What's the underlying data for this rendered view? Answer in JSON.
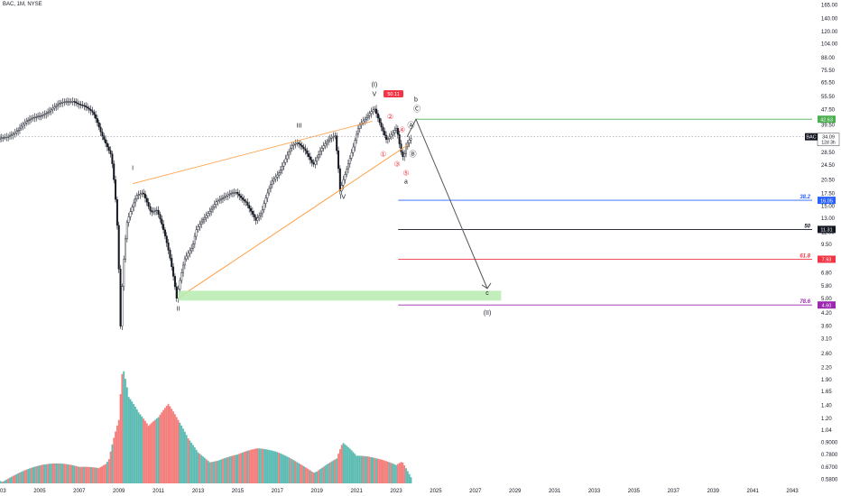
{
  "chart_data": {
    "type": "candlestick",
    "title": "BAC, 1M, NYSE",
    "ticker": "BAC",
    "scale": "log",
    "grid": false,
    "colors": {
      "up": "#26a69a",
      "down": "#ef5350",
      "projection_zone": "#b7ebb0",
      "arrow": "#555555",
      "fib_382": "#2962ff",
      "fib_50": "#131722",
      "fib_618": "#f23645",
      "fib_786": "#9c27b0",
      "fib_top": "#4caf50",
      "channel": "#ffa34d"
    },
    "x_axis": {
      "ticks": [
        "2003",
        "2005",
        "2007",
        "2009",
        "2011",
        "2013",
        "2015",
        "2017",
        "2019",
        "2021",
        "2023",
        "2025",
        "2027",
        "2029",
        "2031",
        "2033",
        "2035",
        "2037",
        "2039",
        "2041",
        "2043"
      ],
      "range": [
        2003,
        2044
      ]
    },
    "y_axis": {
      "ticks": [
        "165.00",
        "140.00",
        "120.00",
        "104.00",
        "88.00",
        "75.50",
        "65.50",
        "55.50",
        "47.50",
        "39.50",
        "33.50",
        "28.50",
        "24.50",
        "20.50",
        "17.50",
        "15.00",
        "13.00",
        "11.00",
        "9.50",
        "8.00",
        "6.80",
        "5.80",
        "5.00",
        "4.20",
        "3.60",
        "3.10",
        "2.60",
        "2.20",
        "1.90",
        "1.65",
        "1.40",
        "1.20",
        "1.04",
        "0.9000",
        "0.7800",
        "0.6700",
        "0.5800"
      ],
      "range": [
        0.55,
        170
      ]
    },
    "price_series": {
      "x": [
        2003.0,
        2004.0,
        2005.0,
        2006.0,
        2006.8,
        2007.3,
        2007.8,
        2008.2,
        2008.7,
        2009.0,
        2009.15,
        2009.5,
        2010.0,
        2010.3,
        2010.7,
        2011.0,
        2011.5,
        2012.0,
        2012.4,
        2012.8,
        2013.0,
        2013.5,
        2014.0,
        2014.5,
        2015.0,
        2015.5,
        2016.0,
        2016.3,
        2016.8,
        2017.2,
        2017.8,
        2018.1,
        2018.5,
        2018.9,
        2019.3,
        2019.8,
        2020.0,
        2020.25,
        2020.6,
        2020.9,
        2021.2,
        2021.6,
        2021.9,
        2022.0,
        2022.3,
        2022.6,
        2022.9,
        2023.1,
        2023.3,
        2023.45,
        2023.6,
        2023.8
      ],
      "y": [
        33.0,
        37.0,
        44.0,
        49.0,
        53.0,
        50.0,
        44.0,
        35.0,
        28.0,
        12.0,
        3.14,
        12.0,
        17.0,
        18.0,
        14.0,
        14.0,
        9.5,
        5.1,
        8.0,
        9.0,
        11.0,
        13.5,
        16.0,
        16.5,
        17.5,
        16.0,
        12.5,
        13.5,
        20.0,
        23.0,
        30.0,
        31.0,
        29.0,
        25.0,
        29.5,
        33.0,
        34.0,
        18.0,
        24.0,
        30.0,
        38.0,
        42.0,
        47.0,
        48.0,
        40.0,
        33.0,
        35.0,
        37.0,
        28.5,
        26.0,
        31.0,
        34.09
      ]
    },
    "volume": {
      "x": [
        2003,
        2005,
        2007,
        2008,
        2008.5,
        2009.0,
        2009.2,
        2009.5,
        2010.0,
        2010.5,
        2011.0,
        2011.5,
        2012.0,
        2012.5,
        2013.0,
        2014.0,
        2015.0,
        2016.0,
        2017.0,
        2018.0,
        2019.0,
        2020.0,
        2020.3,
        2021.0,
        2022.0,
        2023.0,
        2023.3,
        2023.8
      ],
      "y": [
        0.62,
        0.63,
        0.64,
        0.7,
        0.8,
        1.2,
        2.2,
        1.5,
        1.2,
        1.0,
        1.1,
        1.3,
        1.1,
        0.92,
        0.82,
        0.76,
        0.74,
        0.76,
        0.74,
        0.71,
        0.69,
        0.72,
        0.85,
        0.7,
        0.68,
        0.67,
        0.72,
        0.62
      ]
    },
    "last_price_labels": [
      "BAC",
      "34.09",
      "12d 3h"
    ],
    "pivot_price_label": "50.11",
    "wave_labels": {
      "I": "I",
      "II": "II",
      "III": "III",
      "IV": "IV",
      "V": "V",
      "wave_I_paren": "(I)",
      "wave_II_paren": "(II)",
      "a": "a",
      "b": "b",
      "c": "c",
      "A_circ": "Ⓐ",
      "B_circ": "Ⓑ",
      "C_circ": "Ⓒ",
      "n1": "①",
      "n2": "②",
      "n3": "③",
      "n4": "④",
      "n5": "⑤"
    },
    "fib_levels": [
      {
        "label": "",
        "value": 42.0,
        "price_label": "42.63",
        "color": "#4caf50"
      },
      {
        "label": "38.2",
        "value": 16.0,
        "price_label": "16.05",
        "color": "#2962ff"
      },
      {
        "label": "50",
        "value": 11.31,
        "price_label": "11.31",
        "color": "#131722"
      },
      {
        "label": "61.8",
        "value": 7.93,
        "price_label": "7.93",
        "color": "#f23645"
      },
      {
        "label": "78.6",
        "value": 4.6,
        "price_label": "4.60",
        "color": "#9c27b0"
      }
    ],
    "projection": {
      "zone_low": 4.85,
      "zone_high": 5.45,
      "arrow_start": [
        2024.0,
        42.0
      ],
      "arrow_end": [
        2027.6,
        5.6
      ]
    }
  }
}
